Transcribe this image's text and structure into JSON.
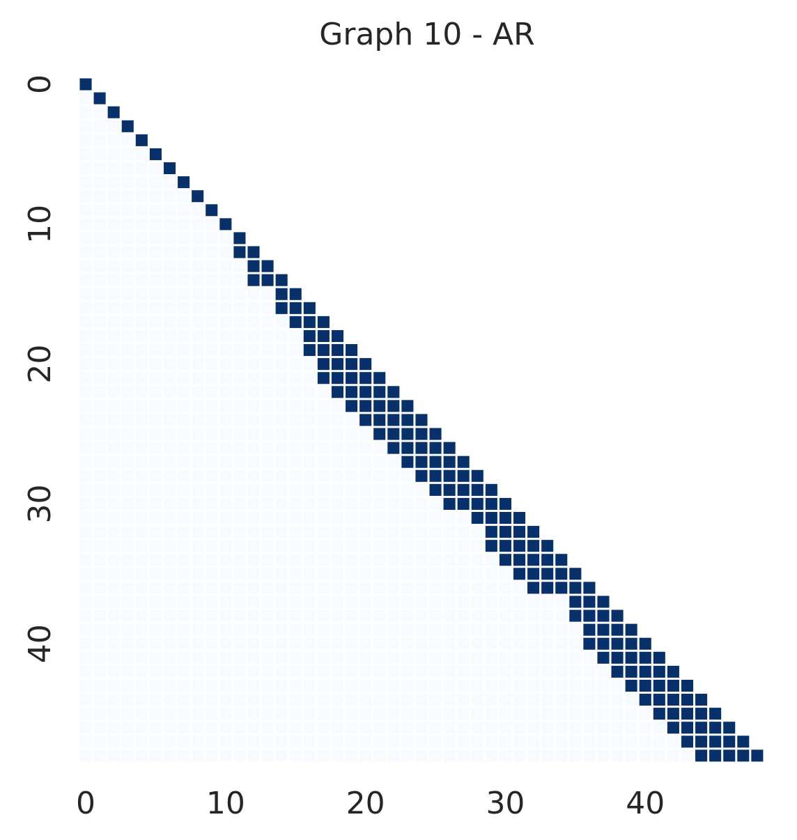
{
  "chart_data": {
    "type": "heatmap",
    "title": "Graph 10 - AR",
    "xlabel": "",
    "ylabel": "",
    "size": 49,
    "x_ticks": [
      0,
      10,
      20,
      30,
      40
    ],
    "y_ticks": [
      0,
      10,
      20,
      30,
      40
    ],
    "matrix_structure": "lower-triangular (row >= column); active cells = 1, other lower-triangle cells = 0, upper triangle empty",
    "active_cells_by_row": [
      [
        0
      ],
      [
        1
      ],
      [
        2
      ],
      [
        3
      ],
      [
        4
      ],
      [
        5
      ],
      [
        6
      ],
      [
        7
      ],
      [
        8
      ],
      [
        9
      ],
      [
        10
      ],
      [
        11
      ],
      [
        11,
        12
      ],
      [
        12,
        13
      ],
      [
        12,
        13,
        14
      ],
      [
        14,
        15
      ],
      [
        14,
        15,
        16
      ],
      [
        15,
        16,
        17
      ],
      [
        16,
        17,
        18
      ],
      [
        16,
        17,
        18,
        19
      ],
      [
        17,
        18,
        19,
        20
      ],
      [
        17,
        18,
        19,
        20,
        21
      ],
      [
        18,
        19,
        20,
        21,
        22
      ],
      [
        19,
        20,
        21,
        22,
        23
      ],
      [
        20,
        21,
        22,
        23,
        24
      ],
      [
        21,
        22,
        23,
        24,
        25
      ],
      [
        22,
        23,
        24,
        25,
        26
      ],
      [
        23,
        24,
        25,
        26,
        27
      ],
      [
        24,
        25,
        26,
        27,
        28
      ],
      [
        25,
        26,
        27,
        28,
        29
      ],
      [
        26,
        27,
        28,
        29,
        30
      ],
      [
        28,
        29,
        30,
        31
      ],
      [
        29,
        30,
        31,
        32
      ],
      [
        29,
        30,
        31,
        32,
        33
      ],
      [
        30,
        31,
        32,
        33,
        34
      ],
      [
        31,
        32,
        33,
        34,
        35
      ],
      [
        32,
        33,
        34,
        35,
        36
      ],
      [
        35,
        36,
        37
      ],
      [
        35,
        36,
        37,
        38
      ],
      [
        36,
        37,
        38,
        39
      ],
      [
        36,
        37,
        38,
        39,
        40
      ],
      [
        37,
        38,
        39,
        40,
        41
      ],
      [
        38,
        39,
        40,
        41,
        42
      ],
      [
        39,
        40,
        41,
        42,
        43
      ],
      [
        40,
        41,
        42,
        43,
        44
      ],
      [
        41,
        42,
        43,
        44,
        45
      ],
      [
        42,
        43,
        44,
        45,
        46
      ],
      [
        43,
        44,
        45,
        46,
        47
      ],
      [
        44,
        45,
        46,
        47,
        48
      ]
    ],
    "colors": {
      "active": "#08306b",
      "inactive": "#f7fbff",
      "background": "#ffffff",
      "text": "#262626"
    },
    "colormap": "Blues",
    "grid": false,
    "legend": "none"
  }
}
